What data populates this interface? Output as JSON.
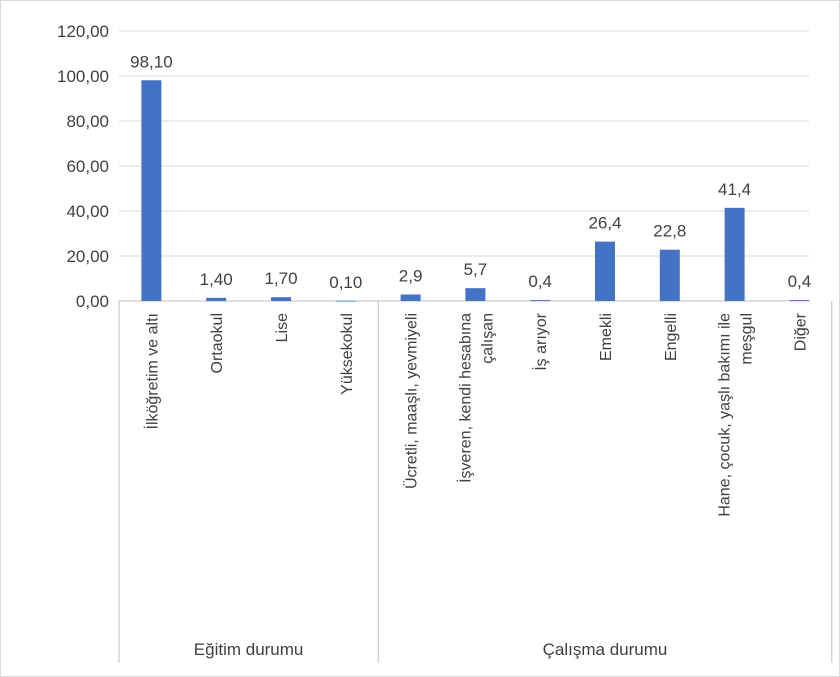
{
  "chart_data": {
    "type": "bar",
    "title": "",
    "ylim": [
      0,
      120
    ],
    "yticks": [
      "0,00",
      "20,00",
      "40,00",
      "60,00",
      "80,00",
      "100,00",
      "120,00"
    ],
    "grid": true,
    "bar_color": "#4472c4",
    "groups": [
      {
        "name": "Eğitim durumu",
        "categories": [
          {
            "label": "İlköğretim ve altı",
            "value": 98.1,
            "value_label": "98,10"
          },
          {
            "label": "Ortaokul",
            "value": 1.4,
            "value_label": "1,40"
          },
          {
            "label": "Lise",
            "value": 1.7,
            "value_label": "1,70"
          },
          {
            "label": "Yüksekokul",
            "value": 0.1,
            "value_label": "0,10"
          }
        ]
      },
      {
        "name": "Çalışma durumu",
        "categories": [
          {
            "label": "Ücretli, maaşlı, yevmiyeli",
            "value": 2.9,
            "value_label": "2,9"
          },
          {
            "label": "İşveren, kendi hesabına çalışan",
            "value": 5.7,
            "value_label": "5,7"
          },
          {
            "label": "İş arıyor",
            "value": 0.4,
            "value_label": "0,4"
          },
          {
            "label": "Emekli",
            "value": 26.4,
            "value_label": "26,4"
          },
          {
            "label": "Engelli",
            "value": 22.8,
            "value_label": "22,8"
          },
          {
            "label": "Hane, çocuk, yaşlı bakımı ile meşgul",
            "value": 41.4,
            "value_label": "41,4"
          },
          {
            "label": "Diğer",
            "value": 0.4,
            "value_label": "0,4"
          }
        ]
      }
    ]
  }
}
